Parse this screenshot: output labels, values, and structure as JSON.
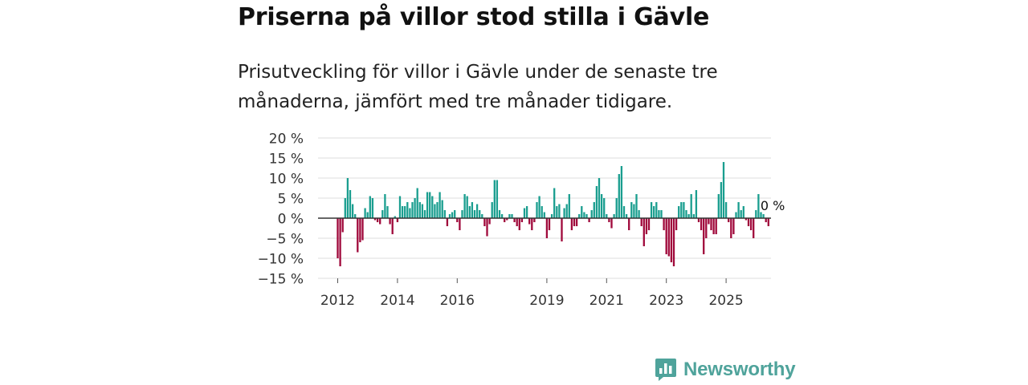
{
  "title": "Priserna på villor stod stilla i Gävle",
  "subtitle": "Prisutveckling för villor i Gävle under de senaste tre månaderna, jämfört med tre månader tidigare.",
  "brand": {
    "name": "Newsworthy",
    "icon": "newsworthy-logo-icon"
  },
  "colors": {
    "positive": "#1a9e8f",
    "negative": "#a0093b",
    "grid": "#dcdcdc",
    "zero_line": "#333333",
    "brand": "#4fa39b"
  },
  "chart_data": {
    "type": "bar",
    "title": "Priserna på villor stod stilla i Gävle",
    "xlabel": "",
    "ylabel": "",
    "ylim": [
      -15,
      20
    ],
    "yticks": [
      20,
      15,
      10,
      5,
      0,
      -5,
      -10,
      -15
    ],
    "ytick_labels": [
      "20 %",
      "15 %",
      "10 %",
      "5 %",
      "0 %",
      "−5 %",
      "−10 %",
      "−15 %"
    ],
    "xticks": [
      2012,
      2014,
      2016,
      2019,
      2021,
      2023,
      2025
    ],
    "xtick_labels": [
      "2012",
      "2014",
      "2016",
      "2019",
      "2021",
      "2023",
      "2025"
    ],
    "x_start": 2012.0,
    "x_step_months": 1,
    "last_value_label": "0 %",
    "values": [
      -10,
      -12,
      -3.5,
      5,
      10,
      7,
      3.5,
      1,
      -8.5,
      -6,
      -5.5,
      2.5,
      1.5,
      5.5,
      5,
      -0.5,
      -1,
      -1.5,
      2,
      6,
      3,
      -1.5,
      -4,
      0.5,
      -1,
      5.5,
      3,
      3,
      4,
      2.5,
      4,
      5,
      7.5,
      4,
      3.5,
      2,
      6.5,
      6.5,
      5.5,
      3.5,
      4,
      6.5,
      4.5,
      2,
      -2,
      1,
      1.5,
      2,
      -1,
      -3,
      2,
      6,
      5.5,
      3,
      4,
      2,
      3.5,
      2,
      1,
      -2,
      -4.5,
      -1.5,
      4,
      9.5,
      9.5,
      2,
      1,
      -1,
      -0.5,
      1,
      1,
      -1,
      -2,
      -3,
      -1,
      2.5,
      3,
      -1.5,
      -3,
      -1,
      4,
      5.5,
      3,
      1.5,
      -5,
      -3,
      1,
      7.5,
      3,
      3.5,
      -5.8,
      2.5,
      3.5,
      6,
      -3,
      -2,
      -2,
      1,
      3,
      1.5,
      1,
      -1,
      2,
      4,
      8,
      10,
      6,
      5,
      1,
      -1,
      -2.5,
      1,
      5,
      11,
      13,
      3,
      1,
      -3,
      4,
      3.5,
      6,
      2,
      -2,
      -7,
      -4,
      -3,
      4,
      3,
      4,
      2,
      2,
      -3,
      -9,
      -9.5,
      -11,
      -12,
      -3,
      3,
      4,
      4,
      2,
      1,
      6,
      1,
      7,
      -1,
      -3,
      -9,
      -5,
      -1.5,
      -3,
      -4,
      -4,
      6,
      9,
      14,
      4,
      -1,
      -5,
      -4,
      1.5,
      4,
      2,
      3,
      -0.5,
      -2,
      -3,
      -5,
      2,
      6,
      1.5,
      1,
      -1,
      -2,
      0
    ]
  }
}
